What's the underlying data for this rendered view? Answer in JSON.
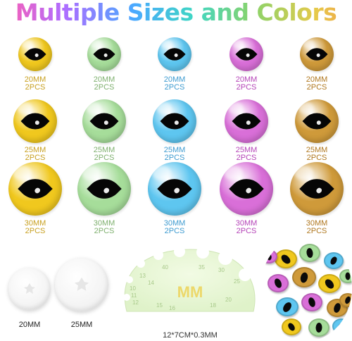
{
  "header": {
    "title": "Multiple Sizes and Colors"
  },
  "colors": [
    {
      "name": "yellow",
      "hex": "#f0c81e",
      "label_color": "#c8a020"
    },
    {
      "name": "green",
      "hex": "#a6dd9a",
      "label_color": "#7fb06f"
    },
    {
      "name": "blue",
      "hex": "#5ec6f0",
      "label_color": "#3e9bd0"
    },
    {
      "name": "pink",
      "hex": "#d96fd8",
      "label_color": "#b545b8"
    },
    {
      "name": "gold",
      "hex": "#cf9a3a",
      "label_color": "#b07820"
    }
  ],
  "rows": [
    {
      "size": "20MM",
      "qty": "2PCS"
    },
    {
      "size": "25MM",
      "qty": "2PCS"
    },
    {
      "size": "30MM",
      "qty": "2PCS"
    }
  ],
  "washers": [
    {
      "size": "20MM"
    },
    {
      "size": "25MM"
    }
  ],
  "gauge": {
    "center_label": "MM",
    "ticks": [
      "10",
      "11",
      "12",
      "13",
      "14",
      "15",
      "16",
      "18",
      "20",
      "25",
      "30",
      "35",
      "40"
    ],
    "dimensions": "12*7CM*0.3MM"
  },
  "pile": {
    "icon": "eyes-pile-photo"
  }
}
